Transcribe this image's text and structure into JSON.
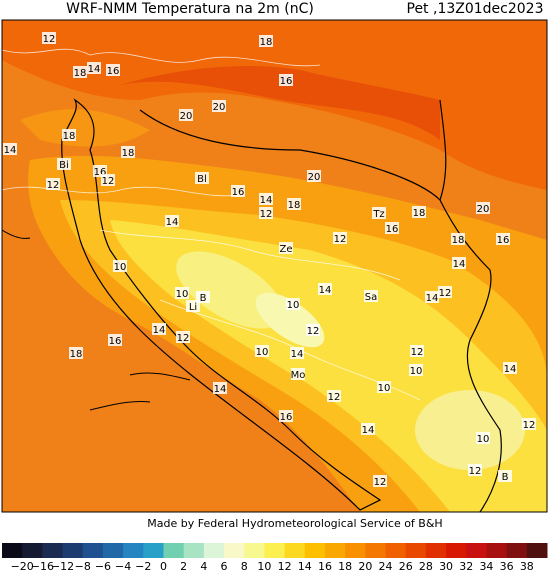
{
  "header": {
    "title": "WRF-NMM Temperatura na 2m (nC)",
    "time": "Pet ,13Z01dec2023"
  },
  "map": {
    "labels": [
      "12",
      "18",
      "18",
      "14",
      "16",
      "16",
      "20",
      "20",
      "18",
      "14",
      "18",
      "Bi",
      "16",
      "12",
      "12",
      "Bl",
      "20",
      "16",
      "14",
      "18",
      "12",
      "Tz",
      "18",
      "20",
      "14",
      "16",
      "12",
      "Ze",
      "18",
      "16",
      "10",
      "14",
      "14",
      "Sa",
      "14",
      "12",
      "10",
      "B",
      "Li",
      "10",
      "14",
      "12",
      "12",
      "16",
      "18",
      "10",
      "14",
      "12",
      "Mo",
      "10",
      "14",
      "14",
      "10",
      "12",
      "16",
      "14",
      "12",
      "10",
      "12",
      "B",
      "12"
    ]
  },
  "footer": {
    "credit": "Made by Federal Hydrometeorological Service of B&H"
  },
  "legend": {
    "labels": [
      "−20",
      "−16",
      "−12",
      "−8",
      "−6",
      "−4",
      "−2",
      "0",
      "2",
      "4",
      "6",
      "8",
      "10",
      "12",
      "14",
      "16",
      "18",
      "20",
      "24",
      "26",
      "28",
      "30",
      "32",
      "34",
      "36",
      "38"
    ]
  }
}
